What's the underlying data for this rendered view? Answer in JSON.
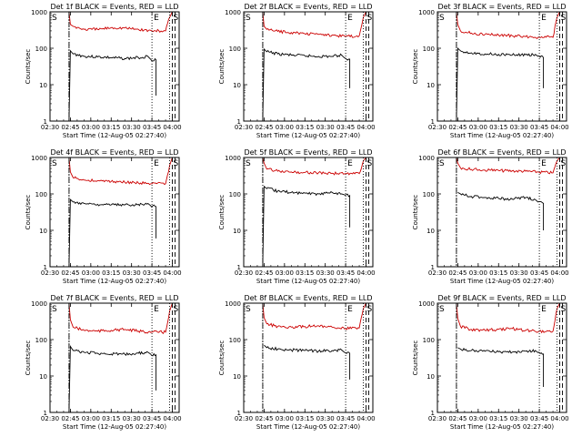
{
  "figure": {
    "xlabel": "Start Time (12-Aug-05 02:27:40)",
    "ylabel": "Counts/sec",
    "x_tick_labels": [
      "02:30",
      "02:45",
      "03:00",
      "03:15",
      "03:30",
      "03:45",
      "04:00"
    ],
    "y_tick_labels": [
      "1",
      "10",
      "100",
      "1000"
    ],
    "markers": {
      "start": "S",
      "end": "E",
      "saa": "S"
    },
    "colors": {
      "events": "#000000",
      "lld": "#cc0000",
      "axes": "#000000"
    }
  },
  "chart_data": [
    {
      "type": "line",
      "title": "Det 1f BLACK = Events, RED = LLD",
      "xlim": [
        "02:30",
        "04:05"
      ],
      "ylim": [
        1,
        1000
      ],
      "yscale": "log",
      "x_ticks": [
        "02:30",
        "02:45",
        "03:00",
        "03:15",
        "03:30",
        "03:45",
        "04:00"
      ],
      "vlines": {
        "dashdot": [
          "02:44"
        ],
        "dotted": [
          "02:44",
          "03:45",
          "03:58"
        ],
        "dashed": [
          "04:00",
          "04:02"
        ]
      },
      "series": [
        {
          "name": "Events",
          "color": "#000000",
          "x": [
            "02:44",
            "02:45",
            "02:47",
            "02:55",
            "03:05",
            "03:15",
            "03:25",
            "03:35",
            "03:42",
            "03:44",
            "03:48",
            "03:48"
          ],
          "y": [
            1,
            85,
            70,
            60,
            58,
            55,
            52,
            55,
            60,
            50,
            48,
            5
          ]
        },
        {
          "name": "LLD",
          "color": "#cc0000",
          "x": [
            "02:44",
            "02:45",
            "02:47",
            "02:55",
            "03:05",
            "03:15",
            "03:25",
            "03:35",
            "03:45",
            "03:55",
            "03:58",
            "04:00"
          ],
          "y": [
            1000,
            450,
            400,
            330,
            330,
            370,
            360,
            330,
            300,
            300,
            700,
            1000
          ]
        }
      ]
    },
    {
      "type": "line",
      "title": "Det 2f BLACK = Events, RED = LLD",
      "xlim": [
        "02:30",
        "04:05"
      ],
      "ylim": [
        1,
        1000
      ],
      "yscale": "log",
      "x_ticks": [
        "02:30",
        "02:45",
        "03:00",
        "03:15",
        "03:30",
        "03:45",
        "04:00"
      ],
      "vlines": {
        "dashdot": [
          "02:44"
        ],
        "dotted": [
          "02:44",
          "03:45",
          "03:58"
        ],
        "dashed": [
          "04:00",
          "04:02"
        ]
      },
      "series": [
        {
          "name": "Events",
          "color": "#000000",
          "x": [
            "02:44",
            "02:45",
            "02:47",
            "02:55",
            "03:05",
            "03:15",
            "03:25",
            "03:35",
            "03:42",
            "03:44",
            "03:48",
            "03:48"
          ],
          "y": [
            1,
            95,
            80,
            70,
            65,
            62,
            60,
            60,
            65,
            55,
            50,
            8
          ]
        },
        {
          "name": "LLD",
          "color": "#cc0000",
          "x": [
            "02:44",
            "02:45",
            "02:47",
            "02:55",
            "03:05",
            "03:15",
            "03:25",
            "03:35",
            "03:45",
            "03:55",
            "03:58",
            "04:00"
          ],
          "y": [
            1000,
            400,
            330,
            290,
            270,
            250,
            240,
            230,
            210,
            220,
            700,
            1000
          ]
        }
      ]
    },
    {
      "type": "line",
      "title": "Det 3f BLACK = Events, RED = LLD",
      "xlim": [
        "02:30",
        "04:05"
      ],
      "ylim": [
        1,
        1000
      ],
      "yscale": "log",
      "x_ticks": [
        "02:30",
        "02:45",
        "03:00",
        "03:15",
        "03:30",
        "03:45",
        "04:00"
      ],
      "vlines": {
        "dashdot": [
          "02:44"
        ],
        "dotted": [
          "02:44",
          "03:45",
          "03:58"
        ],
        "dashed": [
          "04:00",
          "04:02"
        ]
      },
      "series": [
        {
          "name": "Events",
          "color": "#000000",
          "x": [
            "02:44",
            "02:45",
            "02:47",
            "02:55",
            "03:05",
            "03:15",
            "03:25",
            "03:35",
            "03:42",
            "03:44",
            "03:48",
            "03:48"
          ],
          "y": [
            1,
            100,
            85,
            75,
            70,
            68,
            65,
            66,
            68,
            60,
            55,
            8
          ]
        },
        {
          "name": "LLD",
          "color": "#cc0000",
          "x": [
            "02:44",
            "02:45",
            "02:47",
            "02:55",
            "03:05",
            "03:15",
            "03:25",
            "03:35",
            "03:45",
            "03:55",
            "03:58",
            "04:00"
          ],
          "y": [
            1000,
            450,
            300,
            260,
            240,
            230,
            220,
            210,
            200,
            200,
            700,
            1000
          ]
        }
      ]
    },
    {
      "type": "line",
      "title": "Det 4f BLACK = Events, RED = LLD",
      "xlim": [
        "02:30",
        "04:05"
      ],
      "ylim": [
        1,
        1000
      ],
      "yscale": "log",
      "x_ticks": [
        "02:30",
        "02:45",
        "03:00",
        "03:15",
        "03:30",
        "03:45",
        "04:00"
      ],
      "vlines": {
        "dashdot": [
          "02:44"
        ],
        "dotted": [
          "02:44",
          "03:45",
          "03:58"
        ],
        "dashed": [
          "04:00",
          "04:02"
        ]
      },
      "series": [
        {
          "name": "Events",
          "color": "#000000",
          "x": [
            "02:44",
            "02:45",
            "02:47",
            "02:55",
            "03:05",
            "03:15",
            "03:25",
            "03:35",
            "03:42",
            "03:44",
            "03:48",
            "03:48"
          ],
          "y": [
            1,
            70,
            60,
            55,
            52,
            50,
            50,
            52,
            55,
            48,
            45,
            6
          ]
        },
        {
          "name": "LLD",
          "color": "#cc0000",
          "x": [
            "02:44",
            "02:45",
            "02:47",
            "02:55",
            "03:05",
            "03:15",
            "03:25",
            "03:35",
            "03:45",
            "03:55",
            "03:58",
            "04:00"
          ],
          "y": [
            1000,
            400,
            280,
            240,
            230,
            220,
            210,
            200,
            190,
            190,
            600,
            1000
          ]
        }
      ]
    },
    {
      "type": "line",
      "title": "Det 5f BLACK = Events, RED = LLD",
      "xlim": [
        "02:30",
        "04:05"
      ],
      "ylim": [
        1,
        1000
      ],
      "yscale": "log",
      "x_ticks": [
        "02:30",
        "02:45",
        "03:00",
        "03:15",
        "03:30",
        "03:45",
        "04:00"
      ],
      "vlines": {
        "dashdot": [
          "02:44"
        ],
        "dotted": [
          "02:44",
          "03:45",
          "03:58"
        ],
        "dashed": [
          "04:00",
          "04:02"
        ]
      },
      "series": [
        {
          "name": "Events",
          "color": "#000000",
          "x": [
            "02:44",
            "02:45",
            "02:47",
            "02:55",
            "03:05",
            "03:15",
            "03:25",
            "03:35",
            "03:42",
            "03:44",
            "03:48",
            "03:48"
          ],
          "y": [
            1,
            160,
            140,
            120,
            110,
            105,
            100,
            110,
            100,
            95,
            90,
            12
          ]
        },
        {
          "name": "LLD",
          "color": "#cc0000",
          "x": [
            "02:44",
            "02:45",
            "02:47",
            "02:55",
            "03:05",
            "03:15",
            "03:25",
            "03:35",
            "03:45",
            "03:55",
            "03:58",
            "04:00"
          ],
          "y": [
            1000,
            700,
            480,
            420,
            400,
            390,
            380,
            370,
            360,
            360,
            800,
            1000
          ]
        }
      ]
    },
    {
      "type": "line",
      "title": "Det 6f BLACK = Events, RED = LLD",
      "xlim": [
        "02:30",
        "04:05"
      ],
      "ylim": [
        1,
        1000
      ],
      "yscale": "log",
      "x_ticks": [
        "02:30",
        "02:45",
        "03:00",
        "03:15",
        "03:30",
        "03:45",
        "04:00"
      ],
      "vlines": {
        "dashdot": [
          "02:44"
        ],
        "dotted": [
          "02:44",
          "03:45",
          "03:58"
        ],
        "dashed": [
          "04:00",
          "04:02"
        ]
      },
      "series": [
        {
          "name": "Events",
          "color": "#000000",
          "x": [
            "02:45",
            "02:47",
            "02:55",
            "03:05",
            "03:15",
            "03:25",
            "03:35",
            "03:42",
            "03:44",
            "03:48",
            "03:48"
          ],
          "y": [
            110,
            100,
            85,
            80,
            75,
            72,
            80,
            70,
            60,
            55,
            10
          ]
        },
        {
          "name": "LLD",
          "color": "#cc0000",
          "x": [
            "02:44",
            "02:45",
            "02:47",
            "02:55",
            "03:05",
            "03:15",
            "03:25",
            "03:35",
            "03:45",
            "03:55",
            "03:58",
            "04:00"
          ],
          "y": [
            1000,
            700,
            520,
            470,
            450,
            440,
            430,
            420,
            400,
            380,
            800,
            1000
          ]
        }
      ]
    },
    {
      "type": "line",
      "title": "Det 7f BLACK = Events, RED = LLD",
      "xlim": [
        "02:30",
        "04:05"
      ],
      "ylim": [
        1,
        1000
      ],
      "yscale": "log",
      "x_ticks": [
        "02:30",
        "02:45",
        "03:00",
        "03:15",
        "03:30",
        "03:45",
        "04:00"
      ],
      "vlines": {
        "dashdot": [
          "02:44"
        ],
        "dotted": [
          "02:44",
          "03:45",
          "03:58"
        ],
        "dashed": [
          "04:00",
          "04:02"
        ]
      },
      "series": [
        {
          "name": "Events",
          "color": "#000000",
          "x": [
            "02:44",
            "02:45",
            "02:47",
            "02:55",
            "03:05",
            "03:15",
            "03:25",
            "03:35",
            "03:42",
            "03:44",
            "03:48",
            "03:48"
          ],
          "y": [
            1,
            65,
            50,
            45,
            42,
            40,
            40,
            42,
            45,
            40,
            38,
            4
          ]
        },
        {
          "name": "LLD",
          "color": "#cc0000",
          "x": [
            "02:44",
            "02:45",
            "02:47",
            "02:55",
            "03:05",
            "03:15",
            "03:25",
            "03:35",
            "03:45",
            "03:55",
            "03:58",
            "04:00"
          ],
          "y": [
            1000,
            350,
            220,
            180,
            170,
            180,
            190,
            170,
            160,
            160,
            600,
            1000
          ]
        }
      ]
    },
    {
      "type": "line",
      "title": "Det 8f BLACK = Events, RED = LLD",
      "xlim": [
        "02:30",
        "04:05"
      ],
      "ylim": [
        1,
        1000
      ],
      "yscale": "log",
      "x_ticks": [
        "02:30",
        "02:45",
        "03:00",
        "03:15",
        "03:30",
        "03:45",
        "04:00"
      ],
      "vlines": {
        "dashdot": [
          "02:44"
        ],
        "dotted": [
          "02:44",
          "03:45",
          "03:58"
        ],
        "dashed": [
          "04:00",
          "04:02"
        ]
      },
      "series": [
        {
          "name": "Events",
          "color": "#000000",
          "x": [
            "02:45",
            "02:47",
            "02:55",
            "03:05",
            "03:15",
            "03:25",
            "03:35",
            "03:42",
            "03:44",
            "03:48",
            "03:48"
          ],
          "y": [
            70,
            60,
            55,
            52,
            50,
            48,
            50,
            52,
            45,
            42,
            8
          ]
        },
        {
          "name": "LLD",
          "color": "#cc0000",
          "x": [
            "02:44",
            "02:45",
            "02:47",
            "02:55",
            "03:05",
            "03:15",
            "03:25",
            "03:35",
            "03:45",
            "03:55",
            "03:58",
            "04:00"
          ],
          "y": [
            1000,
            400,
            270,
            230,
            220,
            230,
            240,
            220,
            200,
            210,
            700,
            1000
          ]
        }
      ]
    },
    {
      "type": "line",
      "title": "Det 9f BLACK = Events, RED = LLD",
      "xlim": [
        "02:30",
        "04:05"
      ],
      "ylim": [
        1,
        1000
      ],
      "yscale": "log",
      "x_ticks": [
        "02:30",
        "02:45",
        "03:00",
        "03:15",
        "03:30",
        "03:45",
        "04:00"
      ],
      "vlines": {
        "dashdot": [
          "02:44"
        ],
        "dotted": [
          "02:44",
          "03:45",
          "03:58"
        ],
        "dashed": [
          "04:00",
          "04:02"
        ]
      },
      "series": [
        {
          "name": "Events",
          "color": "#000000",
          "x": [
            "02:45",
            "02:47",
            "02:55",
            "03:05",
            "03:15",
            "03:25",
            "03:35",
            "03:42",
            "03:44",
            "03:48",
            "03:48"
          ],
          "y": [
            60,
            55,
            50,
            48,
            46,
            45,
            48,
            50,
            44,
            40,
            5
          ]
        },
        {
          "name": "LLD",
          "color": "#cc0000",
          "x": [
            "02:44",
            "02:45",
            "02:47",
            "02:55",
            "03:05",
            "03:15",
            "03:25",
            "03:35",
            "03:45",
            "03:55",
            "03:58",
            "04:00"
          ],
          "y": [
            1000,
            380,
            230,
            190,
            180,
            190,
            200,
            180,
            170,
            170,
            700,
            1000
          ]
        }
      ]
    }
  ]
}
